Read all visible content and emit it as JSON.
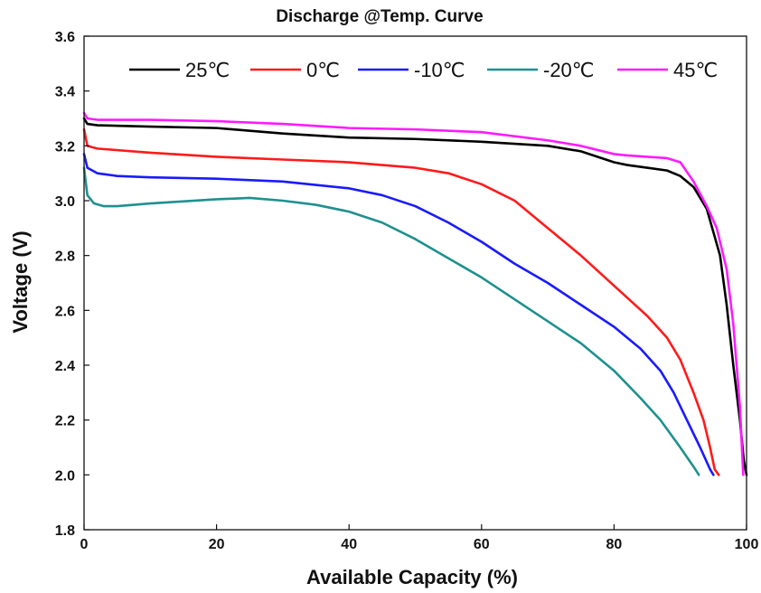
{
  "chart_data": {
    "type": "line",
    "title": "Discharge @Temp. Curve",
    "xlabel": "Available Capacity (%)",
    "ylabel": "Voltage (V)",
    "xlim": [
      0,
      100
    ],
    "ylim": [
      1.8,
      3.6
    ],
    "xticks": [
      0,
      20,
      40,
      60,
      80,
      100
    ],
    "yticks": [
      1.8,
      2.0,
      2.2,
      2.4,
      2.6,
      2.8,
      3.0,
      3.2,
      3.4,
      3.6
    ],
    "xtick_labels": [
      "0",
      "20",
      "40",
      "60",
      "80",
      "100"
    ],
    "ytick_labels": [
      "1.8",
      "2.0",
      "2.2",
      "2.4",
      "2.6",
      "2.8",
      "3.0",
      "3.2",
      "3.4",
      "3.6"
    ],
    "grid": false,
    "legend_position": "top",
    "series": [
      {
        "name": "25℃",
        "color": "#000000",
        "x": [
          0,
          0.5,
          2,
          10,
          20,
          30,
          40,
          50,
          60,
          70,
          75,
          80,
          82,
          85,
          88,
          90,
          92,
          94,
          96,
          97,
          98,
          99,
          99.6,
          100
        ],
        "y": [
          3.3,
          3.28,
          3.275,
          3.27,
          3.265,
          3.245,
          3.23,
          3.225,
          3.215,
          3.2,
          3.18,
          3.14,
          3.13,
          3.12,
          3.11,
          3.09,
          3.05,
          2.97,
          2.8,
          2.62,
          2.4,
          2.2,
          2.05,
          2.0
        ]
      },
      {
        "name": "0℃",
        "color": "#ff1a1a",
        "x": [
          0,
          0.5,
          2,
          10,
          20,
          30,
          40,
          50,
          55,
          60,
          65,
          70,
          75,
          80,
          85,
          88,
          90,
          92,
          93.5,
          94.5,
          95.2,
          95.8
        ],
        "y": [
          3.26,
          3.2,
          3.19,
          3.175,
          3.16,
          3.15,
          3.14,
          3.12,
          3.1,
          3.06,
          3.0,
          2.9,
          2.8,
          2.69,
          2.58,
          2.5,
          2.42,
          2.3,
          2.2,
          2.1,
          2.02,
          2.0
        ]
      },
      {
        "name": "-10℃",
        "color": "#1a1aff",
        "x": [
          0,
          0.5,
          2,
          5,
          10,
          20,
          30,
          40,
          45,
          50,
          55,
          60,
          65,
          70,
          75,
          80,
          84,
          87,
          89,
          91,
          93,
          94.5,
          95
        ],
        "y": [
          3.17,
          3.12,
          3.1,
          3.09,
          3.085,
          3.08,
          3.07,
          3.045,
          3.02,
          2.98,
          2.92,
          2.85,
          2.77,
          2.7,
          2.62,
          2.54,
          2.46,
          2.38,
          2.3,
          2.2,
          2.1,
          2.02,
          2.0
        ]
      },
      {
        "name": "-20℃",
        "color": "#1f9090",
        "x": [
          0,
          0.5,
          1.5,
          3,
          5,
          10,
          20,
          25,
          30,
          35,
          40,
          45,
          50,
          55,
          60,
          65,
          70,
          75,
          80,
          84,
          87,
          90,
          92,
          92.8
        ],
        "y": [
          3.12,
          3.02,
          2.99,
          2.98,
          2.98,
          2.99,
          3.005,
          3.01,
          3.0,
          2.985,
          2.96,
          2.92,
          2.86,
          2.79,
          2.72,
          2.64,
          2.56,
          2.48,
          2.38,
          2.28,
          2.2,
          2.1,
          2.03,
          2.0
        ]
      },
      {
        "name": "45℃",
        "color": "#ff1aff",
        "x": [
          0,
          0.5,
          2,
          10,
          20,
          25,
          30,
          40,
          50,
          60,
          70,
          75,
          80,
          82,
          85,
          88,
          90,
          92,
          94,
          95.5,
          97,
          98,
          99,
          99.5
        ],
        "y": [
          3.32,
          3.3,
          3.295,
          3.295,
          3.29,
          3.285,
          3.28,
          3.265,
          3.26,
          3.25,
          3.22,
          3.2,
          3.17,
          3.165,
          3.16,
          3.155,
          3.14,
          3.07,
          2.98,
          2.9,
          2.75,
          2.55,
          2.25,
          2.0
        ]
      }
    ]
  }
}
